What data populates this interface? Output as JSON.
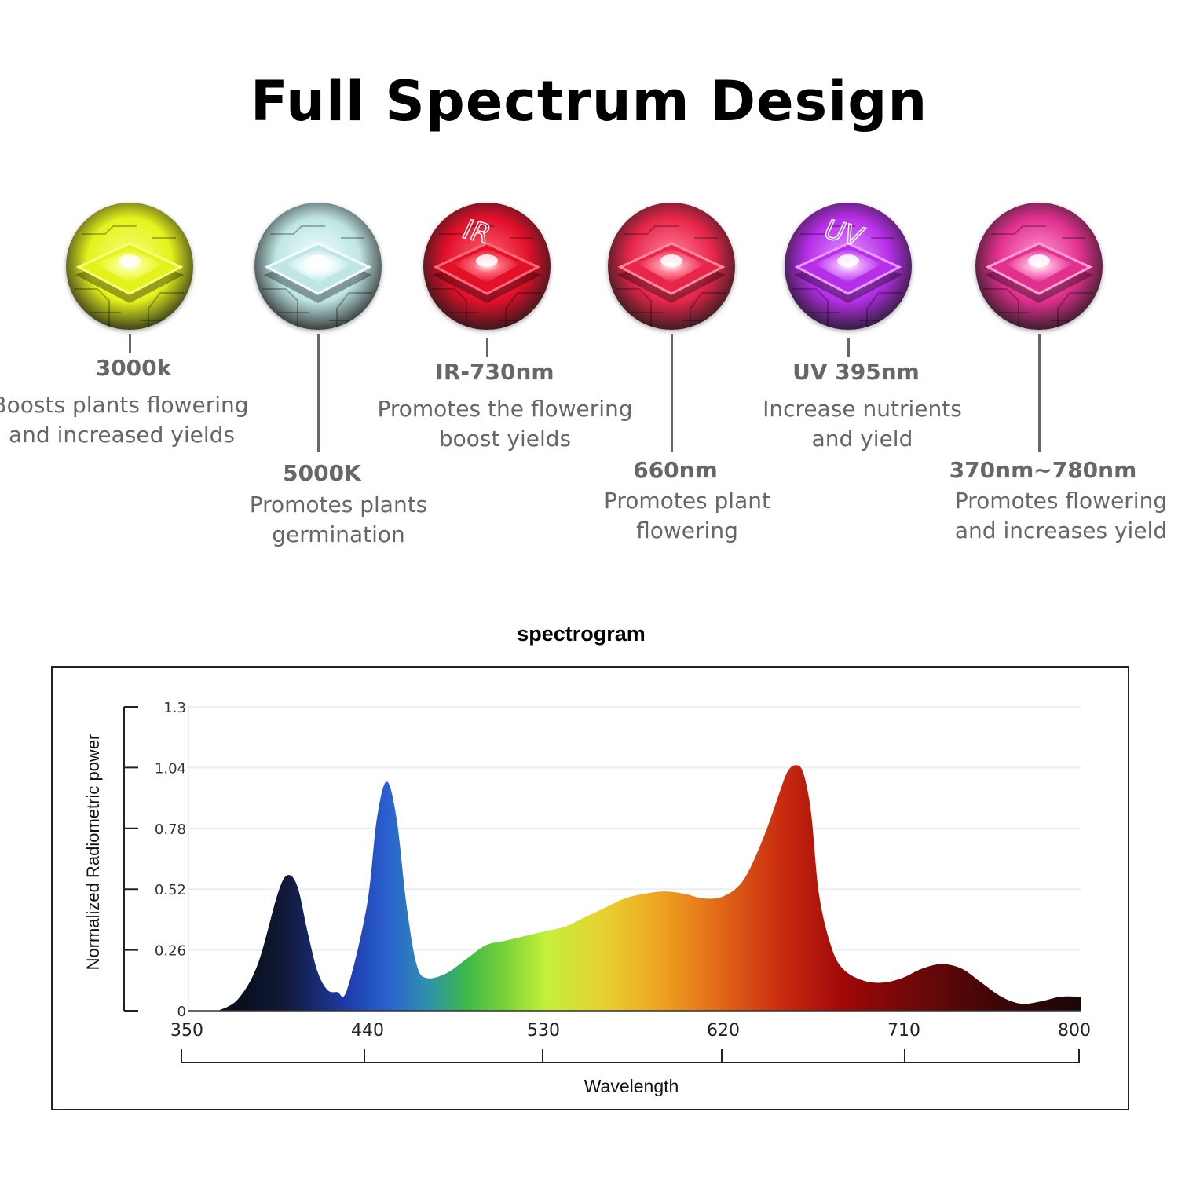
{
  "title": "Full Spectrum Design",
  "items": [
    {
      "icon": "chip-3000k-icon",
      "color": "#e4f21c",
      "glow": "#f7ff7a",
      "label": "3000k",
      "desc": [
        "Boosts plants flowering",
        "and increased yields"
      ],
      "chip_text": ""
    },
    {
      "icon": "chip-5000k-icon",
      "color": "#bfe6e4",
      "glow": "#f3ffff",
      "label": "5000K",
      "desc": [
        "Promotes plants",
        "germination"
      ],
      "chip_text": ""
    },
    {
      "icon": "chip-ir-icon",
      "color": "#e3102a",
      "glow": "#ff6a7a",
      "label": "IR-730nm",
      "desc": [
        "Promotes the flowering",
        "boost yields"
      ],
      "chip_text": "IR"
    },
    {
      "icon": "chip-660nm-icon",
      "color": "#e8264a",
      "glow": "#ff8aa0",
      "label": "660nm",
      "desc": [
        "Promotes plant",
        "flowering"
      ],
      "chip_text": ""
    },
    {
      "icon": "chip-uv-icon",
      "color": "#b52ee8",
      "glow": "#e69bff",
      "label": "UV 395nm",
      "desc": [
        "Increase nutrients",
        "and yield"
      ],
      "chip_text": "UV"
    },
    {
      "icon": "chip-full-spectrum-icon",
      "color": "#e2308f",
      "glow": "#ff9fd2",
      "label": "370nm~780nm",
      "desc": [
        "Promotes flowering",
        "and increases yield"
      ],
      "chip_text": ""
    }
  ],
  "chart_data": {
    "type": "area",
    "title": "spectrogram",
    "xlabel": "Wavelength",
    "ylabel": "Normalized Radiometric power",
    "xlim": [
      350,
      800
    ],
    "ylim": [
      0,
      1.3
    ],
    "x_ticks": [
      "350",
      "440",
      "530",
      "620",
      "710",
      "800"
    ],
    "y_ticks": [
      "0",
      "0.26",
      "0.52",
      "0.78",
      "1.04",
      "1.3"
    ],
    "grid": true,
    "x": [
      365,
      375,
      385,
      395,
      400,
      405,
      410,
      415,
      420,
      425,
      430,
      440,
      445,
      450,
      455,
      460,
      465,
      470,
      480,
      490,
      500,
      510,
      520,
      530,
      540,
      550,
      560,
      570,
      580,
      590,
      600,
      610,
      620,
      630,
      640,
      648,
      652,
      656,
      660,
      664,
      668,
      674,
      680,
      690,
      700,
      710,
      720,
      730,
      740,
      750,
      760,
      770,
      780,
      790,
      800
    ],
    "values": [
      0.0,
      0.05,
      0.2,
      0.5,
      0.58,
      0.53,
      0.34,
      0.17,
      0.09,
      0.08,
      0.09,
      0.45,
      0.82,
      0.98,
      0.82,
      0.45,
      0.2,
      0.14,
      0.16,
      0.22,
      0.28,
      0.3,
      0.32,
      0.34,
      0.36,
      0.4,
      0.44,
      0.48,
      0.5,
      0.51,
      0.5,
      0.48,
      0.49,
      0.56,
      0.74,
      0.93,
      1.02,
      1.05,
      1.02,
      0.85,
      0.5,
      0.28,
      0.18,
      0.13,
      0.12,
      0.14,
      0.18,
      0.2,
      0.18,
      0.12,
      0.06,
      0.03,
      0.04,
      0.06,
      0.06
    ],
    "gradient_stops": [
      {
        "wl": 380,
        "color": "#0a1020"
      },
      {
        "wl": 400,
        "color": "#101a3a"
      },
      {
        "wl": 430,
        "color": "#1e3caa"
      },
      {
        "wl": 450,
        "color": "#2a5fd0"
      },
      {
        "wl": 470,
        "color": "#2f8fb0"
      },
      {
        "wl": 490,
        "color": "#3cb84a"
      },
      {
        "wl": 510,
        "color": "#7ad23a"
      },
      {
        "wl": 530,
        "color": "#c4f03a"
      },
      {
        "wl": 560,
        "color": "#e8d030"
      },
      {
        "wl": 590,
        "color": "#eea020"
      },
      {
        "wl": 620,
        "color": "#e06418"
      },
      {
        "wl": 650,
        "color": "#c82a10"
      },
      {
        "wl": 680,
        "color": "#a00808"
      },
      {
        "wl": 720,
        "color": "#6a0808"
      },
      {
        "wl": 760,
        "color": "#3a0606"
      },
      {
        "wl": 800,
        "color": "#1a0808"
      }
    ]
  }
}
